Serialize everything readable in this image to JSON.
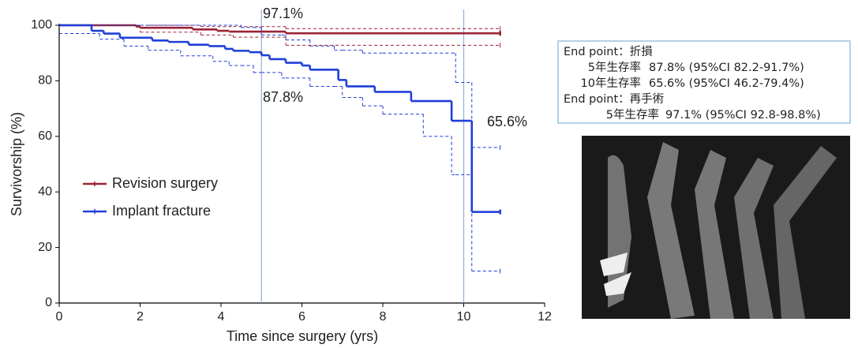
{
  "chart_data": {
    "type": "step",
    "xlabel": "Time since surgery (yrs)",
    "ylabel": "Survivorship (%)",
    "xlim": [
      0,
      12
    ],
    "xticks": [
      0,
      2,
      4,
      6,
      8,
      10,
      12
    ],
    "ylim": [
      0,
      100
    ],
    "yticks": [
      0,
      20,
      40,
      60,
      80,
      100
    ],
    "reference_lines": [
      5,
      10
    ],
    "reference_color": "#8fb0d8",
    "annotations": [
      "97.1%",
      "87.8%",
      "65.6%"
    ],
    "legend": "lower left",
    "series": [
      {
        "name": "Revision surgery",
        "color": "#9b2335",
        "x": [
          0,
          1.9,
          2.0,
          3.3,
          3.9,
          4.2,
          5.6,
          10.9
        ],
        "values": [
          100,
          99.5,
          99.1,
          98.5,
          98,
          97.7,
          97.1,
          97.1
        ],
        "ci_x": [
          0,
          2.0,
          3.5,
          4.3,
          5.6,
          10.9
        ],
        "ci_lower": [
          100,
          97.5,
          96.5,
          95.7,
          92.8,
          92.8
        ],
        "ci_upper": [
          100,
          100,
          99.5,
          99.5,
          98.8,
          98.8
        ]
      },
      {
        "name": "Implant fracture",
        "color": "#1f3fd8",
        "x": [
          0,
          0.8,
          1.1,
          1.5,
          2.3,
          2.7,
          3.2,
          3.7,
          4.1,
          4.3,
          4.7,
          5.0,
          5.2,
          5.6,
          6.0,
          6.2,
          6.9,
          7.1,
          7.8,
          8.7,
          9.7,
          10.2,
          10.9
        ],
        "values": [
          100,
          98,
          97,
          95.5,
          94.5,
          94,
          93,
          92.5,
          91.5,
          90.8,
          90.3,
          89.2,
          87.8,
          86.5,
          85.5,
          84,
          80.3,
          78,
          76,
          72.7,
          65.6,
          32.8,
          32.8
        ],
        "ci_x": [
          0,
          1.0,
          1.6,
          2.2,
          3.0,
          3.8,
          4.2,
          4.5,
          4.8,
          5.0,
          5.5,
          5.6,
          6.2,
          6.8,
          7.0,
          7.5,
          8.0,
          9.0,
          9.7,
          9.8,
          10.2,
          10.9
        ],
        "ci_lower": [
          97,
          95,
          92.5,
          91,
          89,
          87,
          85.5,
          85.5,
          83,
          83,
          81,
          81,
          78,
          78,
          74,
          71,
          68,
          60,
          46.2,
          46.2,
          11.5,
          11.5
        ],
        "ci_upper": [
          100,
          100,
          100,
          100,
          100,
          100,
          100,
          99.2,
          99.2,
          96.5,
          96.5,
          94.7,
          92.5,
          91,
          91,
          90,
          90,
          90,
          90,
          79.4,
          56,
          56
        ]
      }
    ]
  },
  "info_box": {
    "groups": [
      {
        "heading": "End point：折損",
        "rows": [
          {
            "label": "5年生存率",
            "value": "87.8% (95%CI 82.2-91.7%)"
          },
          {
            "label": "10年生存率",
            "value": "65.6% (95%CI 46.2-79.4%)"
          }
        ]
      },
      {
        "heading": "End point：再手術",
        "rows": [
          {
            "label": "5年生存率",
            "value": "97.1% (95%CI 92.8-98.8%)"
          }
        ]
      }
    ]
  }
}
